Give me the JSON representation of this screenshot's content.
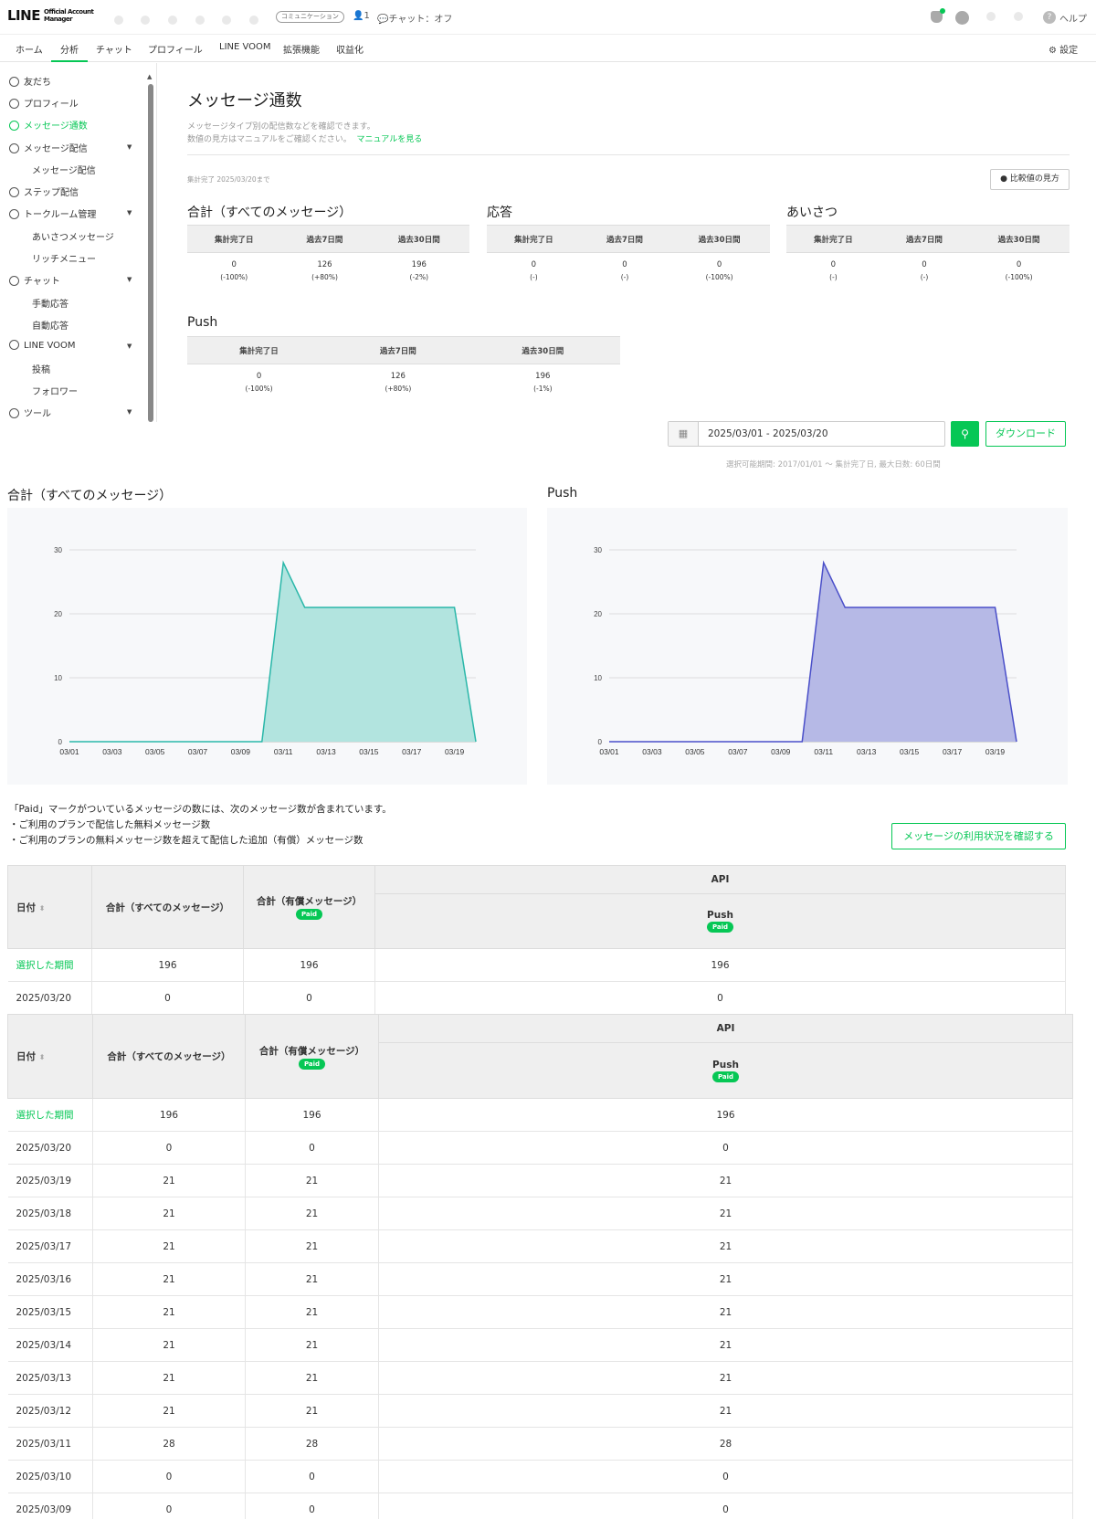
{
  "header": {
    "logo": "LINE",
    "logo_sub": "Official Account Manager",
    "badge": "コミュニケーション",
    "friends_count": "1",
    "chat_status": "チャット：オフ",
    "help": "ヘルプ"
  },
  "nav": {
    "tabs": [
      "ホーム",
      "分析",
      "チャット",
      "プロフィール",
      "LINE VOOM",
      "拡張機能",
      "収益化"
    ],
    "active": "分析",
    "settings": "設定"
  },
  "sidebar": {
    "items": [
      {
        "label": "友だち"
      },
      {
        "label": "プロフィール"
      },
      {
        "label": "メッセージ通数",
        "active": true
      },
      {
        "label": "メッセージ配信"
      },
      {
        "label": "メッセージ配信",
        "sub": true
      },
      {
        "label": "ステップ配信"
      },
      {
        "label": "トークルーム管理"
      },
      {
        "label": "あいさつメッセージ",
        "sub": true
      },
      {
        "label": "リッチメニュー",
        "sub": true
      },
      {
        "label": "チャット"
      },
      {
        "label": "手動応答",
        "sub": true
      },
      {
        "label": "自動応答",
        "sub": true
      },
      {
        "label": "LINE VOOM"
      },
      {
        "label": "投稿",
        "sub": true
      },
      {
        "label": "フォロワー",
        "sub": true
      },
      {
        "label": "ツール"
      }
    ]
  },
  "main": {
    "title": "メッセージ通数",
    "desc1": "メッセージタイプ別の配信数などを確認できます。",
    "desc2": "数値の見方はマニュアルをご確認ください。",
    "manual_link": "マニュアルを見る",
    "agg_note": "集計完了 2025/03/20まで",
    "compare_btn": "比較値の見方",
    "col_headers": [
      "集計完了日",
      "過去7日間",
      "過去30日間"
    ],
    "summary": [
      {
        "title": "合計（すべてのメッセージ）",
        "values": [
          "0",
          "126",
          "196"
        ],
        "changes": [
          "(-100%)",
          "(+80%)",
          "(-2%)"
        ]
      },
      {
        "title": "応答",
        "values": [
          "0",
          "0",
          "0"
        ],
        "changes": [
          "(-)",
          "(-)",
          "(-100%)"
        ]
      },
      {
        "title": "あいさつ",
        "values": [
          "0",
          "0",
          "0"
        ],
        "changes": [
          "(-)",
          "(-)",
          "(-100%)"
        ]
      },
      {
        "title": "Push",
        "values": [
          "0",
          "126",
          "196"
        ],
        "changes": [
          "(-100%)",
          "(+80%)",
          "(-1%)"
        ]
      }
    ],
    "date_range": "2025/03/01 - 2025/03/20",
    "download": "ダウンロード",
    "avail_note": "選択可能期間: 2017/01/01 〜 集計完了日, 最大日数: 60日間",
    "explanation": [
      "「Paid」マークがついているメッセージの数には、次のメッセージ数が含まれています。",
      "・ご利用のプランで配信した無料メッセージ数",
      "・ご利用のプランの無料メッセージ数を超えて配信した追加（有償）メッセージ数"
    ],
    "usage_btn": "メッセージの利用状況を確認する"
  },
  "table": {
    "headers": {
      "date": "日付",
      "total": "合計（すべてのメッセージ）",
      "paid": "合計（有償メッセージ）",
      "api": "API",
      "push": "Push",
      "paid_badge": "Paid"
    },
    "rows": [
      [
        "選択した期間",
        "196",
        "196",
        "196"
      ],
      [
        "2025/03/20",
        "0",
        "0",
        "0"
      ],
      [
        "2025/03/19",
        "21",
        "21",
        "21"
      ],
      [
        "2025/03/18",
        "21",
        "21",
        "21"
      ],
      [
        "2025/03/17",
        "21",
        "21",
        "21"
      ],
      [
        "2025/03/16",
        "21",
        "21",
        "21"
      ],
      [
        "2025/03/15",
        "21",
        "21",
        "21"
      ],
      [
        "2025/03/14",
        "21",
        "21",
        "21"
      ],
      [
        "2025/03/13",
        "21",
        "21",
        "21"
      ],
      [
        "2025/03/12",
        "21",
        "21",
        "21"
      ],
      [
        "2025/03/11",
        "28",
        "28",
        "28"
      ],
      [
        "2025/03/10",
        "0",
        "0",
        "0"
      ],
      [
        "2025/03/09",
        "0",
        "0",
        "0"
      ]
    ]
  },
  "chart_data": [
    {
      "type": "area",
      "title": "合計（すべてのメッセージ）",
      "x": [
        "03/01",
        "03/02",
        "03/03",
        "03/04",
        "03/05",
        "03/06",
        "03/07",
        "03/08",
        "03/09",
        "03/10",
        "03/11",
        "03/12",
        "03/13",
        "03/14",
        "03/15",
        "03/16",
        "03/17",
        "03/18",
        "03/19",
        "03/20"
      ],
      "x_ticks": [
        "03/01",
        "03/03",
        "03/05",
        "03/07",
        "03/09",
        "03/11",
        "03/13",
        "03/15",
        "03/17",
        "03/19"
      ],
      "values": [
        0,
        0,
        0,
        0,
        0,
        0,
        0,
        0,
        0,
        0,
        28,
        21,
        21,
        21,
        21,
        21,
        21,
        21,
        21,
        0
      ],
      "y_ticks": [
        0,
        10,
        20,
        30
      ],
      "ylim": [
        0,
        30
      ],
      "color": "#2ab7a9",
      "fill": "#b2e4df",
      "grid": true
    },
    {
      "type": "area",
      "title": "Push",
      "x": [
        "03/01",
        "03/02",
        "03/03",
        "03/04",
        "03/05",
        "03/06",
        "03/07",
        "03/08",
        "03/09",
        "03/10",
        "03/11",
        "03/12",
        "03/13",
        "03/14",
        "03/15",
        "03/16",
        "03/17",
        "03/18",
        "03/19",
        "03/20"
      ],
      "x_ticks": [
        "03/01",
        "03/03",
        "03/05",
        "03/07",
        "03/09",
        "03/11",
        "03/13",
        "03/15",
        "03/17",
        "03/19"
      ],
      "values": [
        0,
        0,
        0,
        0,
        0,
        0,
        0,
        0,
        0,
        0,
        28,
        21,
        21,
        21,
        21,
        21,
        21,
        21,
        21,
        0
      ],
      "y_ticks": [
        0,
        10,
        20,
        30
      ],
      "ylim": [
        0,
        30
      ],
      "color": "#4a4fc9",
      "fill": "#b6b9e6",
      "grid": true
    }
  ],
  "colors": {
    "accent": "#06c755",
    "negative": "#e44444",
    "positive": "#3a74d8"
  }
}
